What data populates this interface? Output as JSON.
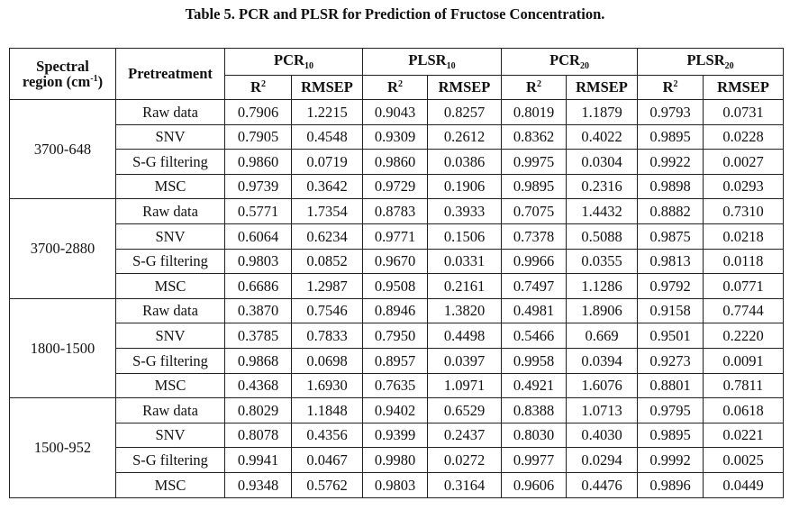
{
  "caption": "Table 5. PCR and PLSR for Prediction of Fructose Concentration.",
  "header": {
    "region_line1": "Spectral",
    "region_line2_pre": "region (cm",
    "region_line2_sup": "-1",
    "region_line2_post": ")",
    "pretreatment": "Pretreatment",
    "groups": [
      {
        "base": "PCR",
        "sub": "10"
      },
      {
        "base": "PLSR",
        "sub": "10"
      },
      {
        "base": "PCR",
        "sub": "20"
      },
      {
        "base": "PLSR",
        "sub": "20"
      }
    ],
    "r2_base": "R",
    "r2_sup": "2",
    "rmsep": "RMSEP"
  },
  "regions": [
    {
      "label": "3700-648",
      "rows": [
        {
          "pre": "Raw data",
          "v": [
            "0.7906",
            "1.2215",
            "0.9043",
            "0.8257",
            "0.8019",
            "1.1879",
            "0.9793",
            "0.0731"
          ]
        },
        {
          "pre": "SNV",
          "v": [
            "0.7905",
            "0.4548",
            "0.9309",
            "0.2612",
            "0.8362",
            "0.4022",
            "0.9895",
            "0.0228"
          ]
        },
        {
          "pre": "S-G filtering",
          "v": [
            "0.9860",
            "0.0719",
            "0.9860",
            "0.0386",
            "0.9975",
            "0.0304",
            "0.9922",
            "0.0027"
          ]
        },
        {
          "pre": "MSC",
          "v": [
            "0.9739",
            "0.3642",
            "0.9729",
            "0.1906",
            "0.9895",
            "0.2316",
            "0.9898",
            "0.0293"
          ]
        }
      ]
    },
    {
      "label": "3700-2880",
      "rows": [
        {
          "pre": "Raw data",
          "v": [
            "0.5771",
            "1.7354",
            "0.8783",
            "0.3933",
            "0.7075",
            "1.4432",
            "0.8882",
            "0.7310"
          ]
        },
        {
          "pre": "SNV",
          "v": [
            "0.6064",
            "0.6234",
            "0.9771",
            "0.1506",
            "0.7378",
            "0.5088",
            "0.9875",
            "0.0218"
          ]
        },
        {
          "pre": "S-G filtering",
          "v": [
            "0.9803",
            "0.0852",
            "0.9670",
            "0.0331",
            "0.9966",
            "0.0355",
            "0.9813",
            "0.0118"
          ]
        },
        {
          "pre": "MSC",
          "v": [
            "0.6686",
            "1.2987",
            "0.9508",
            "0.2161",
            "0.7497",
            "1.1286",
            "0.9792",
            "0.0771"
          ]
        }
      ]
    },
    {
      "label": "1800-1500",
      "rows": [
        {
          "pre": "Raw data",
          "v": [
            "0.3870",
            "0.7546",
            "0.8946",
            "1.3820",
            "0.4981",
            "1.8906",
            "0.9158",
            "0.7744"
          ]
        },
        {
          "pre": "SNV",
          "v": [
            "0.3785",
            "0.7833",
            "0.7950",
            "0.4498",
            "0.5466",
            "0.669",
            "0.9501",
            "0.2220"
          ]
        },
        {
          "pre": "S-G filtering",
          "v": [
            "0.9868",
            "0.0698",
            "0.8957",
            "0.0397",
            "0.9958",
            "0.0394",
            "0.9273",
            "0.0091"
          ]
        },
        {
          "pre": "MSC",
          "v": [
            "0.4368",
            "1.6930",
            "0.7635",
            "1.0971",
            "0.4921",
            "1.6076",
            "0.8801",
            "0.7811"
          ]
        }
      ]
    },
    {
      "label": "1500-952",
      "rows": [
        {
          "pre": "Raw data",
          "v": [
            "0.8029",
            "1.1848",
            "0.9402",
            "0.6529",
            "0.8388",
            "1.0713",
            "0.9795",
            "0.0618"
          ]
        },
        {
          "pre": "SNV",
          "v": [
            "0.8078",
            "0.4356",
            "0.9399",
            "0.2437",
            "0.8030",
            "0.4030",
            "0.9895",
            "0.0221"
          ]
        },
        {
          "pre": "S-G filtering",
          "v": [
            "0.9941",
            "0.0467",
            "0.9980",
            "0.0272",
            "0.9977",
            "0.0294",
            "0.9992",
            "0.0025"
          ]
        },
        {
          "pre": "MSC",
          "v": [
            "0.9348",
            "0.5762",
            "0.9803",
            "0.3164",
            "0.9606",
            "0.4476",
            "0.9896",
            "0.0449"
          ]
        }
      ]
    }
  ]
}
